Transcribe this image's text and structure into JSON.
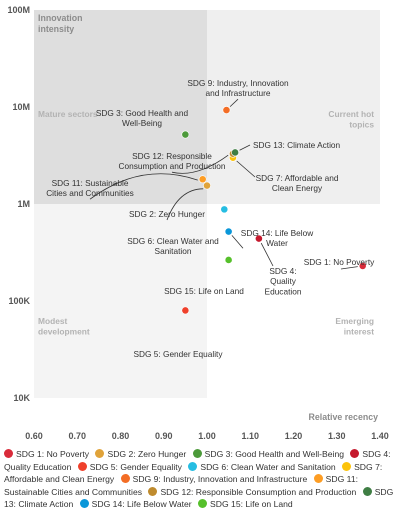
{
  "chart_data": {
    "type": "scatter",
    "title": "",
    "xlabel": "Relative recency",
    "ylabel": "Innovation intensity",
    "x_ticks": [
      "0.60",
      "0.70",
      "0.80",
      "0.90",
      "1.00",
      "1.10",
      "1.20",
      "1.30",
      "1.40"
    ],
    "y_ticks": [
      "10K",
      "100K",
      "1M",
      "10M",
      "100M"
    ],
    "xlim": [
      0.6,
      1.4
    ],
    "y_scale": "log",
    "ylim": [
      10000,
      100000000
    ],
    "grid": false,
    "quadrants": {
      "top_left": "Mature sectors",
      "top_right": "Current hot topics",
      "bottom_left": "Modest development",
      "bottom_right": "Emerging interest"
    },
    "quadrant_colors": {
      "top_left": "#dedede",
      "top_right": "#efefef",
      "bottom_left": "#f4f4f4",
      "bottom_right": "#ffffff"
    },
    "series": [
      {
        "name": "SDG 1: No Poverty",
        "label": "SDG 1: No Poverty",
        "color": "#d92b3a",
        "x": 1.36,
        "y": 230000
      },
      {
        "name": "SDG 2: Zero Hunger",
        "label": "SDG 2: Zero Hunger",
        "color": "#e0a33a",
        "x": 1.0,
        "y": 1550000
      },
      {
        "name": "SDG 3: Good Health and Well-Being",
        "label": "SDG 3: Good Health and Well-Being",
        "color": "#4c9a3a",
        "x": 0.95,
        "y": 5200000
      },
      {
        "name": "SDG 4: Quality Education",
        "label": "SDG 4: Quality Education",
        "color": "#c5192d",
        "x": 1.12,
        "y": 440000
      },
      {
        "name": "SDG 5: Gender Equality",
        "label": "SDG 5: Gender Equality",
        "color": "#ef402b",
        "x": 0.95,
        "y": 80000
      },
      {
        "name": "SDG 6: Clean Water and Sanitation",
        "label": "SDG 6: Clean Water and Sanitation",
        "color": "#26bde2",
        "x": 1.04,
        "y": 880000
      },
      {
        "name": "SDG 7: Affordable and Clean Energy",
        "label": "SDG 7: Affordable and Clean Energy",
        "color": "#fcc30b",
        "x": 1.06,
        "y": 3000000
      },
      {
        "name": "SDG 9: Industry, Innovation and Infrastructure",
        "label": "SDG 9: Industry, Innovation and Infrastructure",
        "color": "#f36d25",
        "x": 1.045,
        "y": 9300000
      },
      {
        "name": "SDG 11: Sustainable Cities and Communities",
        "label": "SDG 11: Sustainable Cities and Communities",
        "color": "#fd9d24",
        "x": 0.99,
        "y": 1800000
      },
      {
        "name": "SDG 12: Responsible Consumption and Production",
        "label": "SDG 12: Responsible Consumption and Production",
        "color": "#bf8b2e",
        "x": 1.06,
        "y": 3300000
      },
      {
        "name": "SDG 13: Climate Action",
        "label": "SDG 13: Climate Action",
        "color": "#3f7e44",
        "x": 1.065,
        "y": 3400000
      },
      {
        "name": "SDG 14: Life Below Water",
        "label": "SDG 14: Life Below Water",
        "color": "#0a97d9",
        "x": 1.05,
        "y": 520000
      },
      {
        "name": "SDG 15: Life on Land",
        "label": "SDG 15: Life on Land",
        "color": "#56c02b",
        "x": 1.05,
        "y": 265000
      }
    ]
  }
}
